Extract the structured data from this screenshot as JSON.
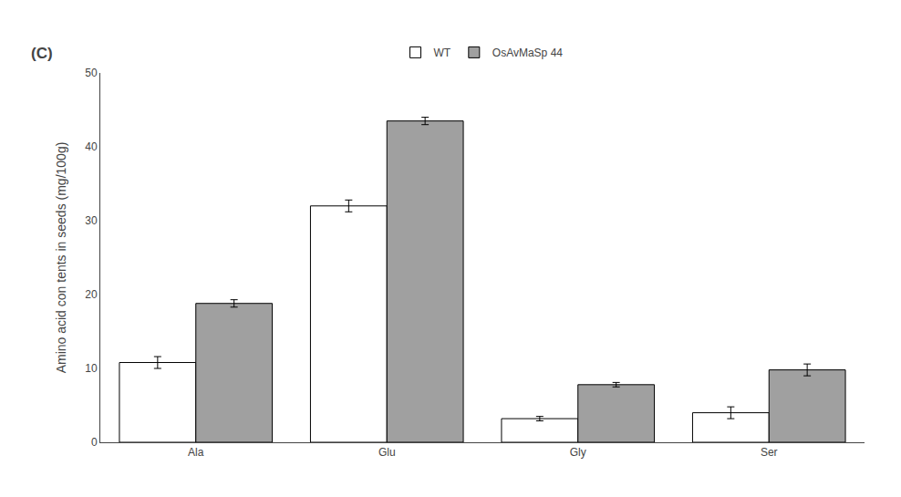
{
  "chart_data": {
    "type": "bar",
    "categories": [
      "Ala",
      "Glu",
      "Gly",
      "Ser"
    ],
    "series": [
      {
        "name": "WT",
        "color": "#ffffff",
        "values": [
          10.8,
          32.0,
          3.2,
          4.0
        ],
        "errors": [
          0.8,
          0.8,
          0.3,
          0.8
        ]
      },
      {
        "name": "OsAvMaSp 44",
        "color": "#a0a0a0",
        "values": [
          18.8,
          43.5,
          7.8,
          9.8
        ],
        "errors": [
          0.5,
          0.5,
          0.3,
          0.8
        ]
      }
    ],
    "y_label": "Amino acid con tents in seeds (mg/100g)",
    "ylim": [
      0,
      50
    ],
    "yticks": [
      0,
      10,
      20,
      30,
      40,
      50
    ],
    "grid": false,
    "legend": "top",
    "annotations": [
      "(C)"
    ]
  }
}
